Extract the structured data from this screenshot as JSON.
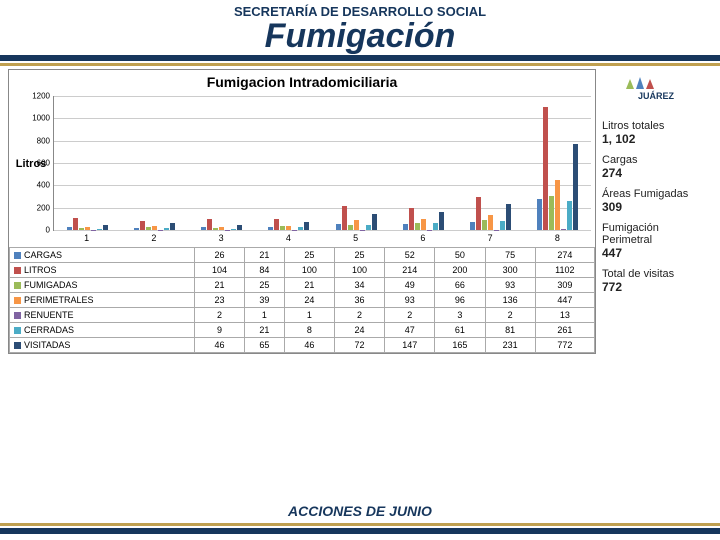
{
  "header": {
    "subtitle": "SECRETARÍA DE DESARROLLO SOCIAL",
    "title": "Fumigación"
  },
  "chart": {
    "title": "Fumigacion Intradomiciliaria",
    "ylabel": "Litros",
    "ylim": [
      0,
      1200
    ],
    "ytick_step": 200,
    "grid_color": "#cccccc",
    "categories": [
      "1",
      "2",
      "3",
      "4",
      "5",
      "6",
      "7",
      "8"
    ],
    "series": [
      {
        "name": "CARGAS",
        "color": "#4f81bd",
        "values": [
          26,
          21,
          25,
          25,
          52,
          50,
          75,
          274
        ]
      },
      {
        "name": "LITROS",
        "color": "#c0504d",
        "values": [
          104,
          84,
          100,
          100,
          214,
          200,
          300,
          1102
        ]
      },
      {
        "name": "FUMIGADAS",
        "color": "#9bbb59",
        "values": [
          21,
          25,
          21,
          34,
          49,
          66,
          93,
          309
        ]
      },
      {
        "name": "PERIMETRALES",
        "color": "#f79646",
        "values": [
          23,
          39,
          24,
          36,
          93,
          96,
          136,
          447
        ]
      },
      {
        "name": "RENUENTE",
        "color": "#8064a2",
        "values": [
          2,
          1,
          1,
          2,
          2,
          3,
          2,
          13
        ]
      },
      {
        "name": "CERRADAS",
        "color": "#4bacc6",
        "values": [
          9,
          21,
          8,
          24,
          47,
          61,
          81,
          261
        ]
      },
      {
        "name": "VISITADAS",
        "color": "#2c4d75",
        "values": [
          46,
          65,
          46,
          72,
          147,
          165,
          231,
          772
        ]
      }
    ]
  },
  "side": {
    "logo_text": "JUÁREZ",
    "stats": [
      {
        "label": "Litros totales",
        "value": "1, 102"
      },
      {
        "label": "Cargas",
        "value": "274"
      },
      {
        "label": "Áreas Fumigadas",
        "value": "309"
      },
      {
        "label": "Fumigación Perimetral",
        "value": "447"
      },
      {
        "label": "Total de visitas",
        "value": "772"
      }
    ]
  },
  "footer": {
    "title": "ACCIONES DE JUNIO"
  },
  "colors": {
    "navy": "#16365c",
    "gold": "#c0a050"
  }
}
